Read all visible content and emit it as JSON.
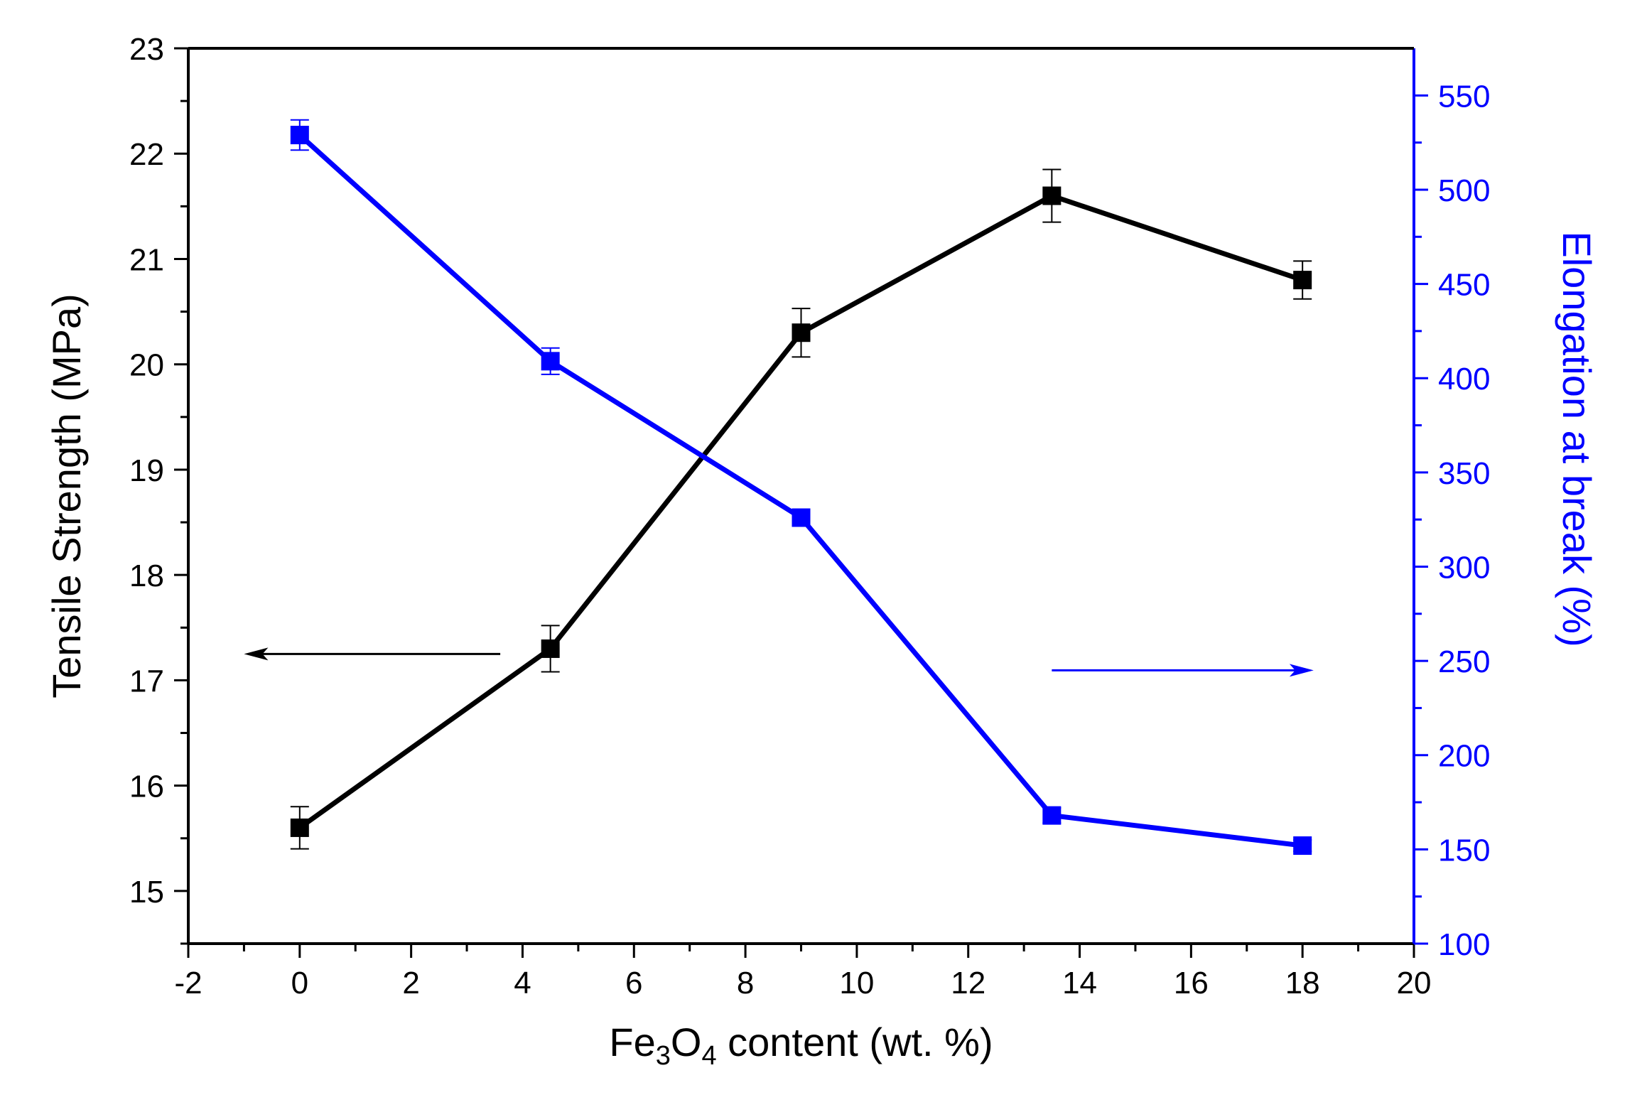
{
  "chart_data": {
    "type": "line",
    "xlabel": {
      "base": "Fe",
      "sub1": "3",
      "mid": "O",
      "sub2": "4",
      "rest": " content (wt. %)"
    },
    "ylabel_left": "Tensile Strength (MPa)",
    "ylabel_right": "Elongation at break (%)",
    "xlim": [
      -2,
      20
    ],
    "ylim_left": [
      14.5,
      23
    ],
    "ylim_right": [
      100,
      575
    ],
    "x_ticks": [
      "-2",
      "0",
      "2",
      "4",
      "6",
      "8",
      "10",
      "12",
      "14",
      "16",
      "18",
      "20"
    ],
    "y_left_ticks": [
      "15",
      "16",
      "17",
      "18",
      "19",
      "20",
      "21",
      "22",
      "23"
    ],
    "y_right_ticks": [
      "100",
      "150",
      "200",
      "250",
      "300",
      "350",
      "400",
      "450",
      "500",
      "550"
    ],
    "grid": false,
    "series": [
      {
        "axis": "left",
        "color": "#000000",
        "marker": "square",
        "x": [
          0,
          4.5,
          9,
          13.5,
          18
        ],
        "y": [
          15.6,
          17.3,
          20.3,
          21.6,
          20.8
        ],
        "error": [
          0.2,
          0.22,
          0.23,
          0.25,
          0.18
        ]
      },
      {
        "axis": "right",
        "color": "#0000ff",
        "marker": "square",
        "x": [
          0,
          4.5,
          9,
          13.5,
          18
        ],
        "y": [
          529,
          409,
          326,
          168,
          152
        ],
        "error": [
          8,
          7,
          4,
          4,
          3
        ]
      }
    ],
    "annotations": [
      {
        "type": "arrow",
        "direction": "left",
        "color": "#000000",
        "x_from": 3.6,
        "x_to": -1.0,
        "y_left": 17.25
      },
      {
        "type": "arrow",
        "direction": "right",
        "color": "#0000ff",
        "x_from": 13.5,
        "x_to": 18.2,
        "y_right": 245
      }
    ]
  }
}
